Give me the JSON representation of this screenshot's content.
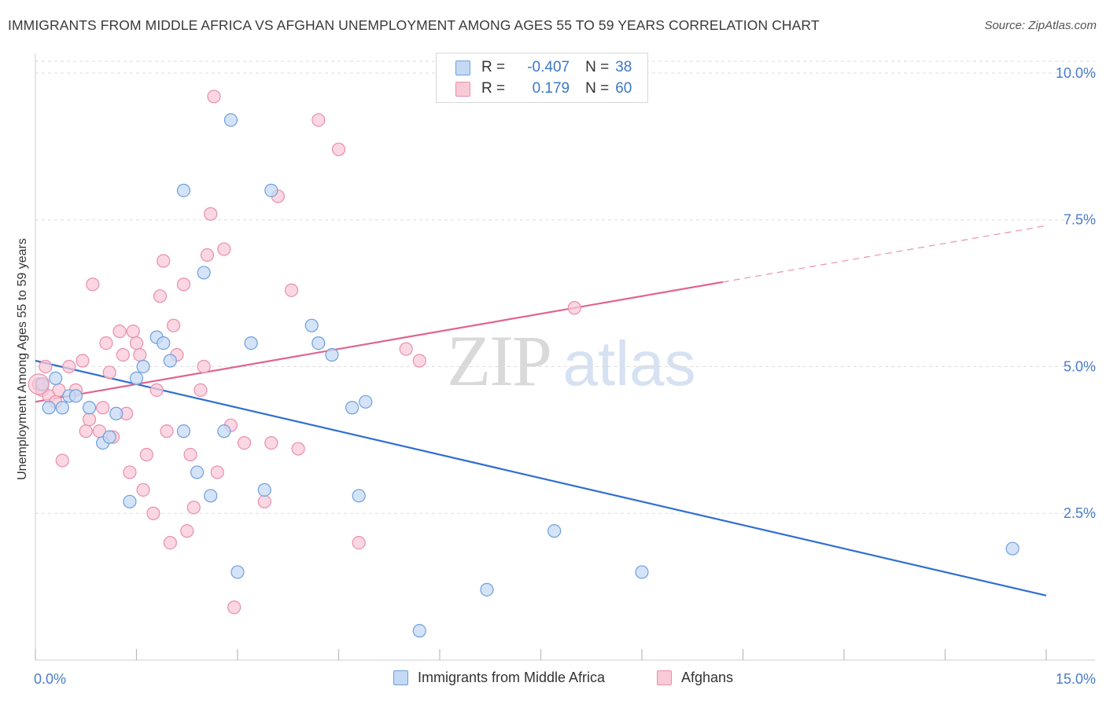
{
  "header": {
    "title": "IMMIGRANTS FROM MIDDLE AFRICA VS AFGHAN UNEMPLOYMENT AMONG AGES 55 TO 59 YEARS CORRELATION CHART",
    "source": "Source: ZipAtlas.com"
  },
  "watermark": {
    "zip": "ZIP",
    "atlas": "atlas"
  },
  "legend_top": {
    "rows": [
      {
        "r_label": "R =",
        "r_value": "-0.407",
        "n_label": "N =",
        "n_value": "38"
      },
      {
        "r_label": "R =",
        "r_value": "0.179",
        "n_label": "N =",
        "n_value": "60"
      }
    ]
  },
  "legend_bottom": {
    "items": [
      "Immigrants from Middle Africa",
      "Afghans"
    ]
  },
  "colors": {
    "blue_fill": "#c5d9f4",
    "blue_stroke": "#6e9fdc",
    "blue_line": "#2f6fd0",
    "pink_fill": "#f8cad8",
    "pink_stroke": "#e88fab",
    "pink_line": "#e0648d",
    "axis_text": "#4a7ccc",
    "grid": "#dddddd"
  },
  "chart_data": {
    "type": "scatter",
    "title": "IMMIGRANTS FROM MIDDLE AFRICA VS AFGHAN UNEMPLOYMENT AMONG AGES 55 TO 59 YEARS CORRELATION CHART",
    "xlabel": "",
    "ylabel": "Unemployment Among Ages 55 to 59 years",
    "xlim": [
      0,
      15
    ],
    "ylim": [
      0,
      10.2
    ],
    "x_tick_labels": [
      "0.0%",
      "15.0%"
    ],
    "y_ticks": [
      2.5,
      5.0,
      7.5,
      10.0
    ],
    "y_tick_labels": [
      "2.5%",
      "5.0%",
      "7.5%",
      "10.0%"
    ],
    "series": [
      {
        "name": "Immigrants from Middle Africa",
        "r": -0.407,
        "n": 38,
        "trend": {
          "x0": 0.0,
          "y0": 5.1,
          "x1": 15.0,
          "y1": 1.1,
          "dashed_from": null
        },
        "points": [
          [
            0.1,
            4.7
          ],
          [
            0.2,
            4.3
          ],
          [
            0.3,
            4.8
          ],
          [
            0.4,
            4.3
          ],
          [
            0.5,
            4.5
          ],
          [
            0.6,
            4.5
          ],
          [
            0.8,
            4.3
          ],
          [
            1.0,
            3.7
          ],
          [
            1.1,
            3.8
          ],
          [
            1.2,
            4.2
          ],
          [
            1.4,
            2.7
          ],
          [
            1.5,
            4.8
          ],
          [
            1.6,
            5.0
          ],
          [
            1.8,
            5.5
          ],
          [
            1.9,
            5.4
          ],
          [
            2.0,
            5.1
          ],
          [
            2.2,
            8.0
          ],
          [
            2.2,
            3.9
          ],
          [
            2.4,
            3.2
          ],
          [
            2.5,
            6.6
          ],
          [
            2.6,
            2.8
          ],
          [
            2.8,
            3.9
          ],
          [
            2.9,
            9.2
          ],
          [
            3.0,
            1.5
          ],
          [
            3.2,
            5.4
          ],
          [
            3.4,
            2.9
          ],
          [
            3.5,
            8.0
          ],
          [
            4.1,
            5.7
          ],
          [
            4.2,
            5.4
          ],
          [
            4.4,
            5.2
          ],
          [
            4.7,
            4.3
          ],
          [
            4.8,
            2.8
          ],
          [
            4.9,
            4.4
          ],
          [
            5.7,
            0.5
          ],
          [
            6.7,
            1.2
          ],
          [
            7.7,
            2.2
          ],
          [
            9.0,
            1.5
          ],
          [
            14.5,
            1.9
          ]
        ]
      },
      {
        "name": "Afghans",
        "r": 0.179,
        "n": 60,
        "trend": {
          "x0": 0.0,
          "y0": 4.4,
          "x1": 15.0,
          "y1": 7.4,
          "dashed_from": 10.2
        },
        "points": [
          [
            0.05,
            4.7
          ],
          [
            0.1,
            4.6
          ],
          [
            0.15,
            5.0
          ],
          [
            0.2,
            4.5
          ],
          [
            0.3,
            4.4
          ],
          [
            0.35,
            4.6
          ],
          [
            0.4,
            3.4
          ],
          [
            0.5,
            5.0
          ],
          [
            0.6,
            4.6
          ],
          [
            0.7,
            5.1
          ],
          [
            0.75,
            3.9
          ],
          [
            0.8,
            4.1
          ],
          [
            0.85,
            6.4
          ],
          [
            0.95,
            3.9
          ],
          [
            1.0,
            4.3
          ],
          [
            1.05,
            5.4
          ],
          [
            1.1,
            4.9
          ],
          [
            1.15,
            3.8
          ],
          [
            1.25,
            5.6
          ],
          [
            1.3,
            5.2
          ],
          [
            1.35,
            4.2
          ],
          [
            1.4,
            3.2
          ],
          [
            1.45,
            5.6
          ],
          [
            1.5,
            5.4
          ],
          [
            1.55,
            5.2
          ],
          [
            1.6,
            2.9
          ],
          [
            1.65,
            3.5
          ],
          [
            1.75,
            2.5
          ],
          [
            1.8,
            4.6
          ],
          [
            1.85,
            6.2
          ],
          [
            1.9,
            6.8
          ],
          [
            1.95,
            3.9
          ],
          [
            2.0,
            2.0
          ],
          [
            2.05,
            5.7
          ],
          [
            2.1,
            5.2
          ],
          [
            2.2,
            6.4
          ],
          [
            2.25,
            2.2
          ],
          [
            2.3,
            3.5
          ],
          [
            2.35,
            2.6
          ],
          [
            2.45,
            4.6
          ],
          [
            2.5,
            5.0
          ],
          [
            2.55,
            6.9
          ],
          [
            2.6,
            7.6
          ],
          [
            2.65,
            9.6
          ],
          [
            2.7,
            3.2
          ],
          [
            2.8,
            7.0
          ],
          [
            2.9,
            4.0
          ],
          [
            2.95,
            0.9
          ],
          [
            3.1,
            3.7
          ],
          [
            3.4,
            2.7
          ],
          [
            3.5,
            3.7
          ],
          [
            3.6,
            7.9
          ],
          [
            3.8,
            6.3
          ],
          [
            3.9,
            3.6
          ],
          [
            4.2,
            9.2
          ],
          [
            4.5,
            8.7
          ],
          [
            4.8,
            2.0
          ],
          [
            5.5,
            5.3
          ],
          [
            5.7,
            5.1
          ],
          [
            8.0,
            6.0
          ]
        ]
      }
    ]
  }
}
